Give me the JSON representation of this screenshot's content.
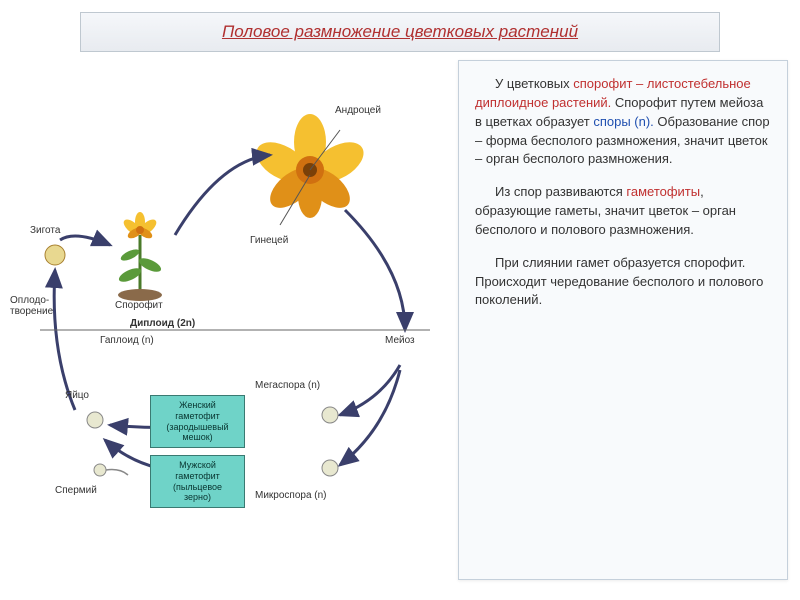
{
  "header": {
    "title": "Половое размножение цветковых растений"
  },
  "diagram": {
    "labels": {
      "androcey": "Андроцей",
      "gynecey": "Гинецей",
      "zygote": "Зигота",
      "fertilization": "Оплодо-\nтворение",
      "sporophyte": "Спорофит",
      "diploid": "Диплоид (2n)",
      "haploid": "Гаплоид (n)",
      "meiosis": "Мейоз",
      "megaspore": "Мегаспора (n)",
      "microspore": "Микроспора (n)",
      "egg": "Яйцо",
      "sperm": "Спермий",
      "female_gam": "Женский\nгаметофит\n(зародышевый\nмешок)",
      "male_gam": "Мужской\nгаметофит\n(пыльцевое\nзерно)"
    },
    "colors": {
      "arrow": "#3a3f6b",
      "box_bg": "#6fd3c8",
      "box_border": "#3a7a72",
      "petal": "#f5c030",
      "petal_dark": "#e09018",
      "stem": "#4a7a2a",
      "leaf": "#5a9a3a"
    }
  },
  "text": {
    "p1_pre": "У цветковых ",
    "p1_red": "спорофит – листостебельное диплоидное растений.",
    "p1_mid": " Спорофит путем мейоза в цветках образует ",
    "p1_blue": "споры (n).",
    "p1_post": " Образование спор – форма бесполого размножения, значит цветок – орган бесполого размножения.",
    "p2_pre": "Из спор развиваются ",
    "p2_red": "гаметофиты",
    "p2_post": ", образующие гаметы, значит цветок – орган бесполого и полового размножения.",
    "p3": "При слиянии гамет образуется спорофит. Происходит чередование бесполого и полового поколений."
  }
}
